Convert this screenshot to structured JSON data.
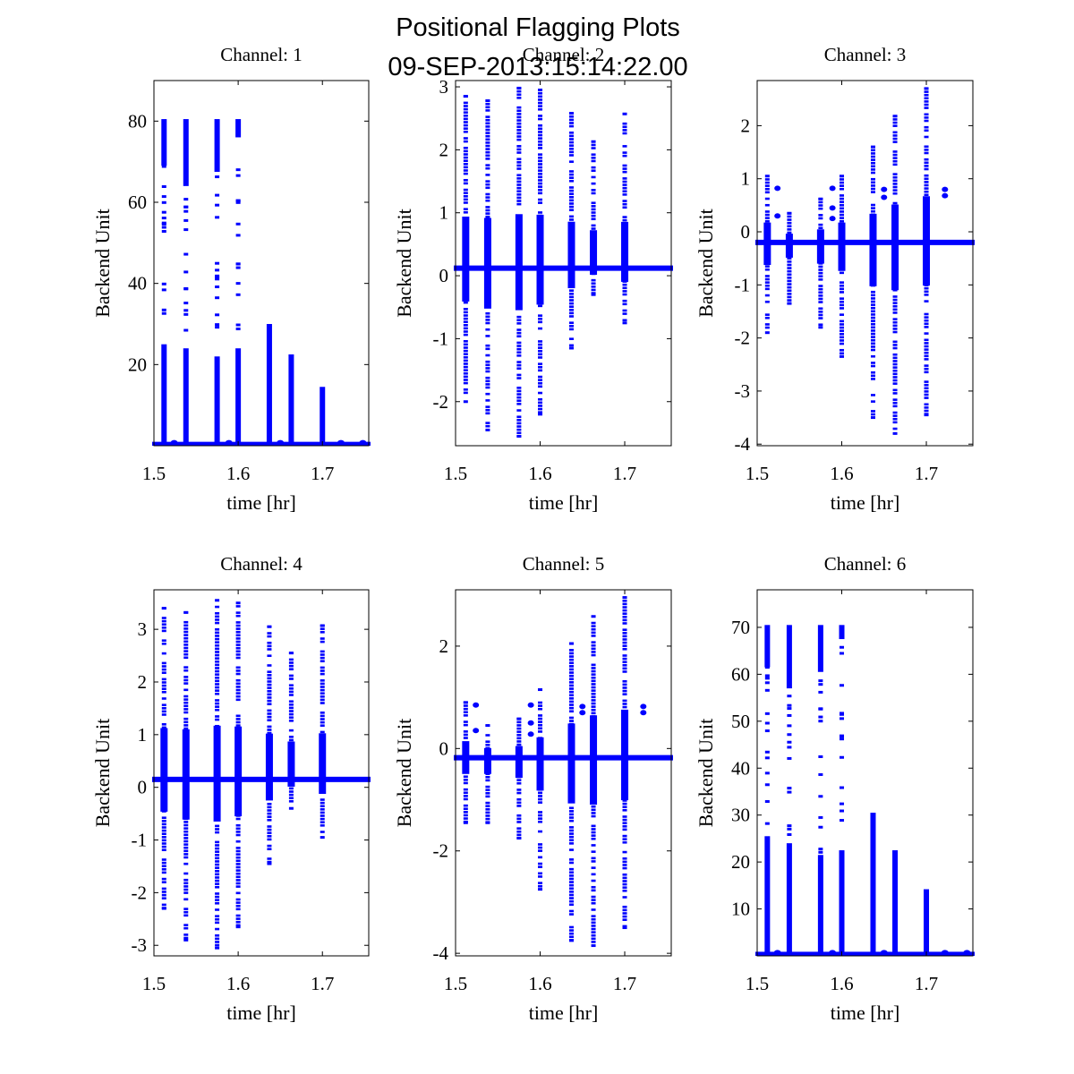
{
  "figure": {
    "title": "Positional Flagging Plots",
    "subtitle": "09-SEP-2013:15:14:22.00",
    "marker_color": "#0000ff"
  },
  "chart_data": [
    {
      "type": "scatter",
      "title": "Channel: 1",
      "xlabel": "time [hr]",
      "ylabel": "Backend Unit",
      "xlim": [
        1.5,
        1.755
      ],
      "ylim": [
        0,
        90
      ],
      "xticks": [
        1.5,
        1.6,
        1.7
      ],
      "xtick_labels": [
        "1.5",
        "1.6",
        "1.7"
      ],
      "yticks": [
        20,
        40,
        60,
        80
      ],
      "ytick_labels": [
        "20",
        "40",
        "60",
        "80"
      ],
      "baseline": 0.3,
      "spikes": [
        {
          "x": 1.512,
          "min": 0.3,
          "max": 80.5,
          "dense_top": [
            69,
            80.5
          ],
          "dense_bottom": 25
        },
        {
          "x": 1.538,
          "min": 0.3,
          "max": 80.5,
          "dense_top": [
            64,
            80.5
          ],
          "dense_bottom": 24
        },
        {
          "x": 1.575,
          "min": 0.3,
          "max": 80.5,
          "dense_top": [
            67.5,
            80.5
          ],
          "dense_bottom": 22
        },
        {
          "x": 1.6,
          "min": 0.3,
          "max": 80.5,
          "dense_top": [
            76,
            80.5
          ],
          "dense_bottom": 24
        },
        {
          "x": 1.637,
          "min": 0.3,
          "max": 30,
          "dense_top": null,
          "dense_bottom": 30
        },
        {
          "x": 1.663,
          "min": 0.3,
          "max": 22.5,
          "dense_top": null,
          "dense_bottom": 22.5
        },
        {
          "x": 1.7,
          "min": 0.3,
          "max": 14.5,
          "dense_top": null,
          "dense_bottom": 14.5
        }
      ]
    },
    {
      "type": "scatter",
      "title": "Channel: 2",
      "xlabel": "time [hr]",
      "ylabel": "Backend Unit",
      "xlim": [
        1.5,
        1.755
      ],
      "ylim": [
        -2.7,
        3.1
      ],
      "xticks": [
        1.5,
        1.6,
        1.7
      ],
      "xtick_labels": [
        "1.5",
        "1.6",
        "1.7"
      ],
      "yticks": [
        -2,
        -1,
        0,
        1,
        2,
        3
      ],
      "ytick_labels": [
        "-2",
        "-1",
        "0",
        "1",
        "2",
        "3"
      ],
      "baseline": 0.12,
      "spikes": [
        {
          "x": 1.512,
          "min": -2.0,
          "max": 2.85
        },
        {
          "x": 1.538,
          "min": -2.45,
          "max": 2.78
        },
        {
          "x": 1.575,
          "min": -2.55,
          "max": 2.98
        },
        {
          "x": 1.6,
          "min": -2.2,
          "max": 2.95
        },
        {
          "x": 1.637,
          "min": -1.15,
          "max": 2.58
        },
        {
          "x": 1.663,
          "min": -0.3,
          "max": 2.13
        },
        {
          "x": 1.7,
          "min": -0.75,
          "max": 2.57
        }
      ]
    },
    {
      "type": "scatter",
      "title": "Channel: 3",
      "xlabel": "time [hr]",
      "ylabel": "Backend Unit",
      "xlim": [
        1.5,
        1.755
      ],
      "ylim": [
        -4.03,
        2.85
      ],
      "xticks": [
        1.5,
        1.6,
        1.7
      ],
      "xtick_labels": [
        "1.5",
        "1.6",
        "1.7"
      ],
      "yticks": [
        -4,
        -3,
        -2,
        -1,
        0,
        1,
        2
      ],
      "ytick_labels": [
        "-4",
        "-3",
        "-2",
        "-1",
        "0",
        "1",
        "2"
      ],
      "baseline": -0.2,
      "spikes": [
        {
          "x": 1.512,
          "min": -1.9,
          "max": 1.05
        },
        {
          "x": 1.538,
          "min": -1.35,
          "max": 0.35
        },
        {
          "x": 1.575,
          "min": -1.8,
          "max": 0.62
        },
        {
          "x": 1.6,
          "min": -2.35,
          "max": 1.05
        },
        {
          "x": 1.637,
          "min": -3.5,
          "max": 1.6
        },
        {
          "x": 1.663,
          "min": -3.8,
          "max": 2.18
        },
        {
          "x": 1.7,
          "min": -3.45,
          "max": 2.7
        }
      ],
      "clusters": [
        {
          "x": 1.524,
          "y": 0.82
        },
        {
          "x": 1.524,
          "y": 0.3
        },
        {
          "x": 1.589,
          "y": 0.82
        },
        {
          "x": 1.589,
          "y": 0.45
        },
        {
          "x": 1.589,
          "y": 0.25
        },
        {
          "x": 1.65,
          "y": 0.8
        },
        {
          "x": 1.65,
          "y": 0.65
        },
        {
          "x": 1.722,
          "y": 0.8
        },
        {
          "x": 1.722,
          "y": 0.68
        }
      ]
    },
    {
      "type": "scatter",
      "title": "Channel: 4",
      "xlabel": "time [hr]",
      "ylabel": "Backend Unit",
      "xlim": [
        1.5,
        1.755
      ],
      "ylim": [
        -3.2,
        3.75
      ],
      "xticks": [
        1.5,
        1.6,
        1.7
      ],
      "xtick_labels": [
        "1.5",
        "1.6",
        "1.7"
      ],
      "yticks": [
        -3,
        -2,
        -1,
        0,
        1,
        2,
        3
      ],
      "ytick_labels": [
        "-3",
        "-2",
        "-1",
        "0",
        "1",
        "2",
        "3"
      ],
      "baseline": 0.15,
      "spikes": [
        {
          "x": 1.512,
          "min": -2.3,
          "max": 3.4
        },
        {
          "x": 1.538,
          "min": -2.9,
          "max": 3.32
        },
        {
          "x": 1.575,
          "min": -3.05,
          "max": 3.55
        },
        {
          "x": 1.6,
          "min": -2.65,
          "max": 3.5
        },
        {
          "x": 1.637,
          "min": -1.45,
          "max": 3.05
        },
        {
          "x": 1.663,
          "min": -0.4,
          "max": 2.55
        },
        {
          "x": 1.7,
          "min": -0.95,
          "max": 3.07
        }
      ]
    },
    {
      "type": "scatter",
      "title": "Channel: 5",
      "xlabel": "time [hr]",
      "ylabel": "Backend Unit",
      "xlim": [
        1.5,
        1.755
      ],
      "ylim": [
        -4.05,
        3.1
      ],
      "xticks": [
        1.5,
        1.6,
        1.7
      ],
      "xtick_labels": [
        "1.5",
        "1.6",
        "1.7"
      ],
      "yticks": [
        -4,
        -2,
        0,
        2
      ],
      "ytick_labels": [
        "-4",
        "-2",
        "0",
        "2"
      ],
      "baseline": -0.18,
      "spikes": [
        {
          "x": 1.512,
          "min": -1.45,
          "max": 0.9
        },
        {
          "x": 1.538,
          "min": -1.45,
          "max": 0.45
        },
        {
          "x": 1.575,
          "min": -1.75,
          "max": 0.58
        },
        {
          "x": 1.6,
          "min": -2.75,
          "max": 1.15
        },
        {
          "x": 1.637,
          "min": -3.75,
          "max": 2.05
        },
        {
          "x": 1.663,
          "min": -3.85,
          "max": 2.58
        },
        {
          "x": 1.7,
          "min": -3.5,
          "max": 2.95
        }
      ],
      "clusters": [
        {
          "x": 1.524,
          "y": 0.85
        },
        {
          "x": 1.524,
          "y": 0.35
        },
        {
          "x": 1.589,
          "y": 0.85
        },
        {
          "x": 1.589,
          "y": 0.5
        },
        {
          "x": 1.589,
          "y": 0.28
        },
        {
          "x": 1.65,
          "y": 0.82
        },
        {
          "x": 1.65,
          "y": 0.7
        },
        {
          "x": 1.722,
          "y": 0.82
        },
        {
          "x": 1.722,
          "y": 0.7
        }
      ]
    },
    {
      "type": "scatter",
      "title": "Channel: 6",
      "xlabel": "time [hr]",
      "ylabel": "Backend Unit",
      "xlim": [
        1.5,
        1.755
      ],
      "ylim": [
        0,
        78
      ],
      "xticks": [
        1.5,
        1.6,
        1.7
      ],
      "xtick_labels": [
        "1.5",
        "1.6",
        "1.7"
      ],
      "yticks": [
        10,
        20,
        30,
        40,
        50,
        60,
        70
      ],
      "ytick_labels": [
        "10",
        "20",
        "30",
        "40",
        "50",
        "60",
        "70"
      ],
      "baseline": 0.3,
      "spikes": [
        {
          "x": 1.512,
          "min": 0.3,
          "max": 70.5,
          "dense_top": [
            61.5,
            70.5
          ],
          "dense_bottom": 25.5
        },
        {
          "x": 1.538,
          "min": 0.3,
          "max": 70.5,
          "dense_top": [
            57,
            70.5
          ],
          "dense_bottom": 24
        },
        {
          "x": 1.575,
          "min": 0.3,
          "max": 70.5,
          "dense_top": [
            60.5,
            70.5
          ],
          "dense_bottom": 21.5
        },
        {
          "x": 1.6,
          "min": 0.3,
          "max": 70.5,
          "dense_top": [
            67.5,
            70.5
          ],
          "dense_bottom": 22.5
        },
        {
          "x": 1.637,
          "min": 0.3,
          "max": 30.5,
          "dense_top": null,
          "dense_bottom": 30.5
        },
        {
          "x": 1.663,
          "min": 0.3,
          "max": 22.5,
          "dense_top": null,
          "dense_bottom": 22.5
        },
        {
          "x": 1.7,
          "min": 0.3,
          "max": 14.2,
          "dense_top": null,
          "dense_bottom": 14.2
        }
      ]
    }
  ]
}
